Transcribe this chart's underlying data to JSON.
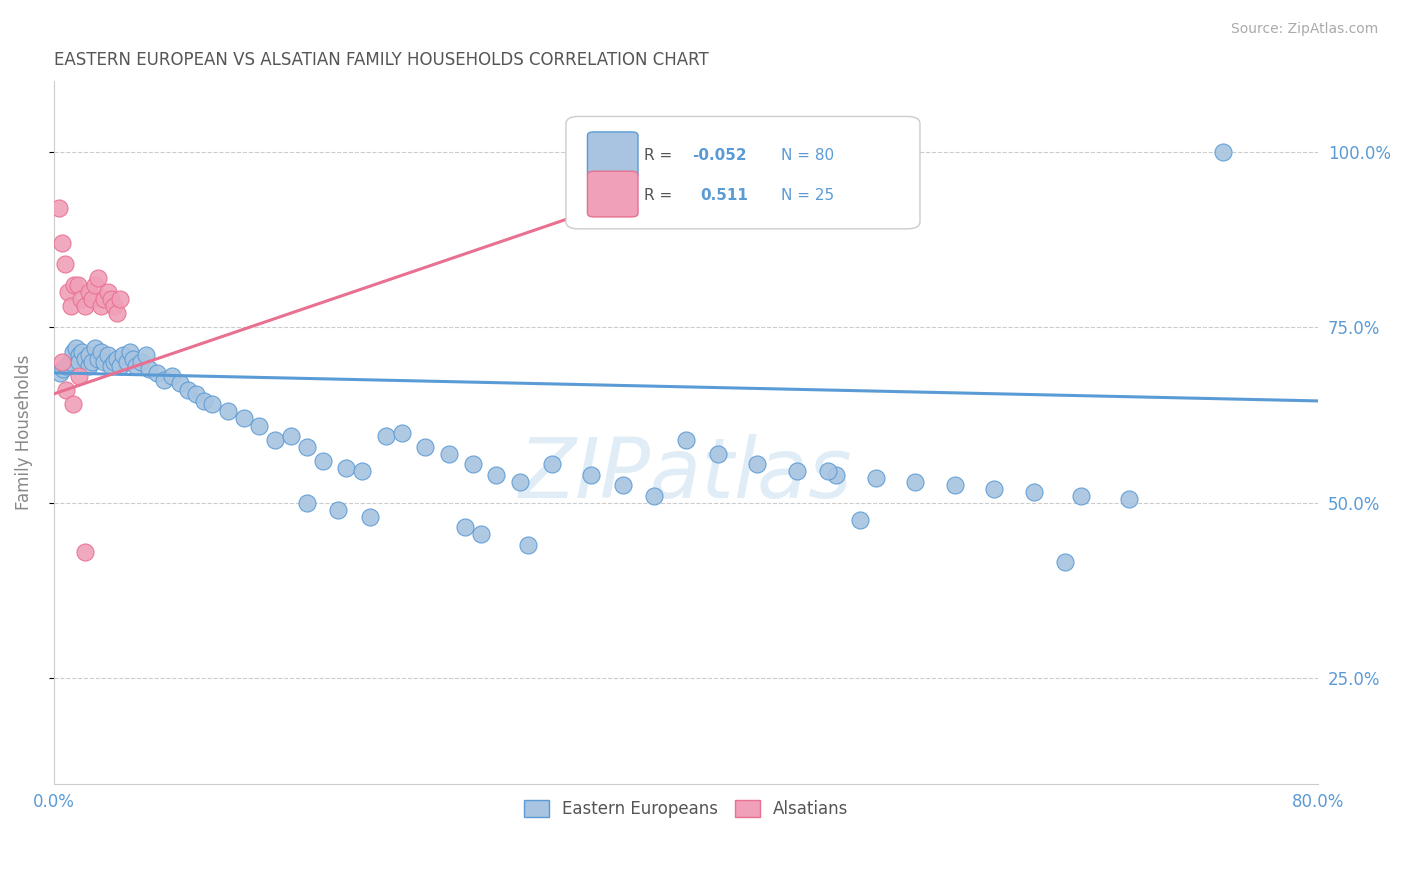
{
  "title": "EASTERN EUROPEAN VS ALSATIAN FAMILY HOUSEHOLDS CORRELATION CHART",
  "source": "Source: ZipAtlas.com",
  "ylabel": "Family Households",
  "xlim": [
    0.0,
    0.8
  ],
  "ylim": [
    0.1,
    1.1
  ],
  "yticks": [
    0.25,
    0.5,
    0.75,
    1.0
  ],
  "yticklabels": [
    "25.0%",
    "50.0%",
    "75.0%",
    "100.0%"
  ],
  "blue_R": -0.052,
  "blue_N": 80,
  "pink_R": 0.511,
  "pink_N": 25,
  "blue_color": "#a8c4e0",
  "pink_color": "#f0a0b8",
  "blue_line_color": "#5b9bd5",
  "pink_line_color": "#e87090",
  "legend_blue_label": "Eastern Europeans",
  "legend_pink_label": "Alsatians",
  "watermark_text": "ZIPatlas",
  "blue_trend_start_y": 0.685,
  "blue_trend_end_y": 0.645,
  "pink_trend_x0": 0.0,
  "pink_trend_y0": 0.655,
  "pink_trend_x1": 0.45,
  "pink_trend_y1": 1.0,
  "blue_x": [
    0.004,
    0.006,
    0.008,
    0.01,
    0.012,
    0.014,
    0.016,
    0.016,
    0.018,
    0.02,
    0.022,
    0.022,
    0.024,
    0.026,
    0.028,
    0.03,
    0.032,
    0.034,
    0.036,
    0.038,
    0.04,
    0.042,
    0.044,
    0.046,
    0.048,
    0.05,
    0.052,
    0.055,
    0.058,
    0.06,
    0.065,
    0.07,
    0.075,
    0.08,
    0.085,
    0.09,
    0.095,
    0.1,
    0.11,
    0.12,
    0.13,
    0.14,
    0.15,
    0.16,
    0.17,
    0.185,
    0.195,
    0.21,
    0.22,
    0.235,
    0.25,
    0.265,
    0.28,
    0.295,
    0.315,
    0.34,
    0.36,
    0.38,
    0.4,
    0.42,
    0.445,
    0.47,
    0.495,
    0.52,
    0.545,
    0.57,
    0.595,
    0.62,
    0.65,
    0.68,
    0.16,
    0.18,
    0.2,
    0.26,
    0.27,
    0.3,
    0.49,
    0.51,
    0.64,
    0.74
  ],
  "blue_y": [
    0.685,
    0.69,
    0.695,
    0.7,
    0.715,
    0.72,
    0.71,
    0.7,
    0.715,
    0.705,
    0.695,
    0.71,
    0.7,
    0.72,
    0.705,
    0.715,
    0.7,
    0.71,
    0.695,
    0.7,
    0.705,
    0.695,
    0.71,
    0.7,
    0.715,
    0.705,
    0.695,
    0.7,
    0.71,
    0.69,
    0.685,
    0.675,
    0.68,
    0.67,
    0.66,
    0.655,
    0.645,
    0.64,
    0.63,
    0.62,
    0.61,
    0.59,
    0.595,
    0.58,
    0.56,
    0.55,
    0.545,
    0.595,
    0.6,
    0.58,
    0.57,
    0.555,
    0.54,
    0.53,
    0.555,
    0.54,
    0.525,
    0.51,
    0.59,
    0.57,
    0.555,
    0.545,
    0.54,
    0.535,
    0.53,
    0.525,
    0.52,
    0.515,
    0.51,
    0.505,
    0.5,
    0.49,
    0.48,
    0.465,
    0.455,
    0.44,
    0.545,
    0.475,
    0.415,
    1.0
  ],
  "pink_x": [
    0.003,
    0.005,
    0.007,
    0.009,
    0.011,
    0.013,
    0.015,
    0.017,
    0.02,
    0.022,
    0.024,
    0.026,
    0.028,
    0.03,
    0.032,
    0.034,
    0.036,
    0.038,
    0.04,
    0.042,
    0.005,
    0.008,
    0.012,
    0.016,
    0.02
  ],
  "pink_y": [
    0.92,
    0.87,
    0.84,
    0.8,
    0.78,
    0.81,
    0.81,
    0.79,
    0.78,
    0.8,
    0.79,
    0.81,
    0.82,
    0.78,
    0.79,
    0.8,
    0.79,
    0.78,
    0.77,
    0.79,
    0.7,
    0.66,
    0.64,
    0.68,
    0.43
  ]
}
